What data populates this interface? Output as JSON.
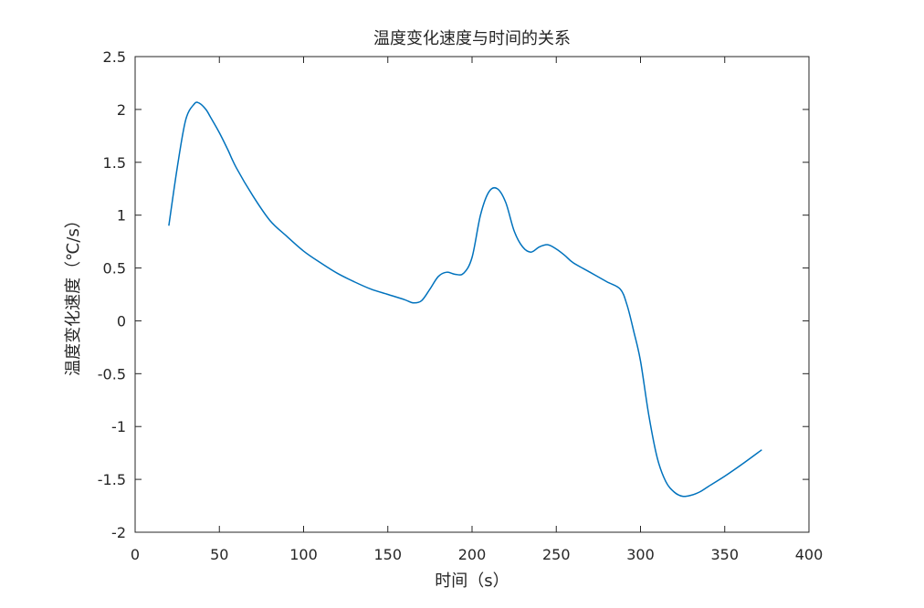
{
  "chart_data": {
    "type": "line",
    "title": "温度变化速度与时间的关系",
    "xlabel": "时间（s）",
    "ylabel": "温度变化速度（℃/s）",
    "xlim": [
      0,
      400
    ],
    "ylim": [
      -2,
      2.5
    ],
    "xticks": [
      "0",
      "50",
      "100",
      "150",
      "200",
      "250",
      "300",
      "350",
      "400"
    ],
    "yticks": [
      "-2",
      "-1.5",
      "-1",
      "-0.5",
      "0",
      "0.5",
      "1",
      "1.5",
      "2",
      "2.5"
    ],
    "grid": false,
    "line_color": "#0072bd",
    "series": [
      {
        "x": [
          20,
          25,
          30,
          35,
          38,
          42,
          45,
          50,
          55,
          60,
          70,
          80,
          90,
          100,
          110,
          120,
          130,
          140,
          150,
          160,
          165,
          170,
          175,
          180,
          185,
          190,
          195,
          200,
          205,
          210,
          215,
          220,
          225,
          230,
          235,
          240,
          245,
          250,
          255,
          260,
          270,
          280,
          288,
          292,
          296,
          300,
          305,
          310,
          315,
          320,
          325,
          330,
          335,
          340,
          350,
          360,
          372
        ],
        "y": [
          0.9,
          1.45,
          1.9,
          2.05,
          2.06,
          2.0,
          1.92,
          1.78,
          1.62,
          1.45,
          1.18,
          0.95,
          0.8,
          0.66,
          0.55,
          0.45,
          0.37,
          0.3,
          0.25,
          0.2,
          0.17,
          0.19,
          0.3,
          0.42,
          0.46,
          0.44,
          0.45,
          0.6,
          1.0,
          1.22,
          1.25,
          1.12,
          0.85,
          0.7,
          0.65,
          0.7,
          0.72,
          0.68,
          0.62,
          0.55,
          0.46,
          0.37,
          0.3,
          0.15,
          -0.1,
          -0.38,
          -0.9,
          -1.3,
          -1.52,
          -1.62,
          -1.66,
          -1.65,
          -1.62,
          -1.57,
          -1.47,
          -1.36,
          -1.22
        ]
      }
    ]
  }
}
